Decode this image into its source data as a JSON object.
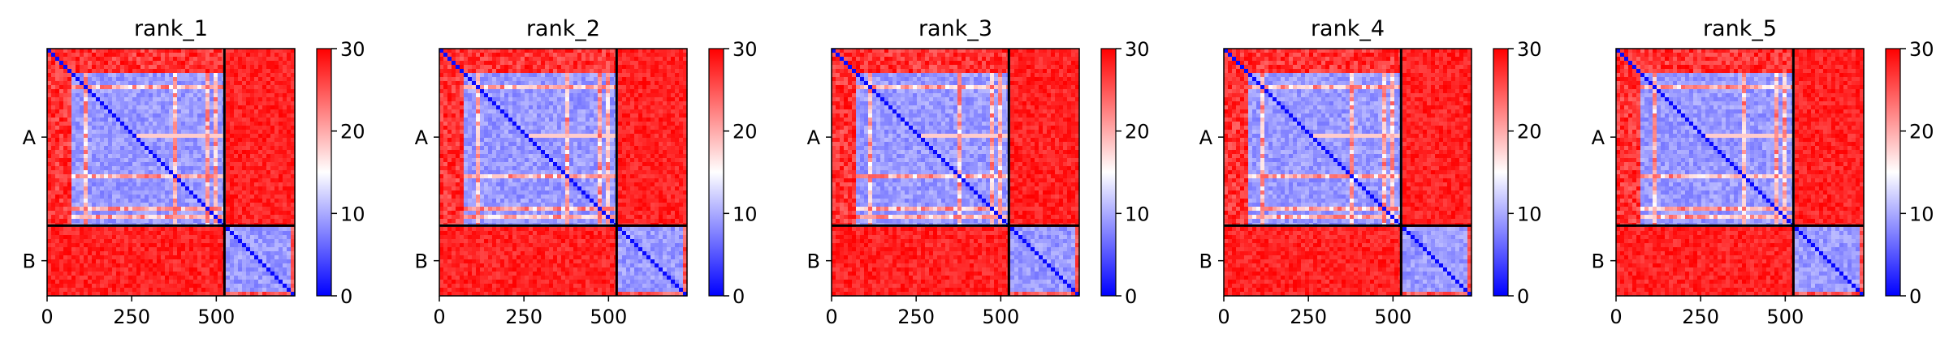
{
  "chart_data": {
    "type": "heatmap",
    "metric_note": "",
    "chain_labels": [
      "A",
      "B"
    ],
    "chain_lengths": [
      524,
      208
    ],
    "x_ticks": [
      0,
      250,
      500
    ],
    "colorbar": {
      "min": 0,
      "max": 30,
      "ticks": [
        0,
        10,
        20,
        30
      ],
      "colors": [
        "#0000ff",
        "#ffffff",
        "#ff0000"
      ]
    },
    "panels": [
      {
        "title": "rank_1"
      },
      {
        "title": "rank_2"
      },
      {
        "title": "rank_3"
      },
      {
        "title": "rank_4"
      },
      {
        "title": "rank_5"
      }
    ],
    "visual_summary": {
      "intra_chain_value_range": [
        3,
        12
      ],
      "inter_chain_value": 30,
      "diagonal_value": 0
    }
  }
}
